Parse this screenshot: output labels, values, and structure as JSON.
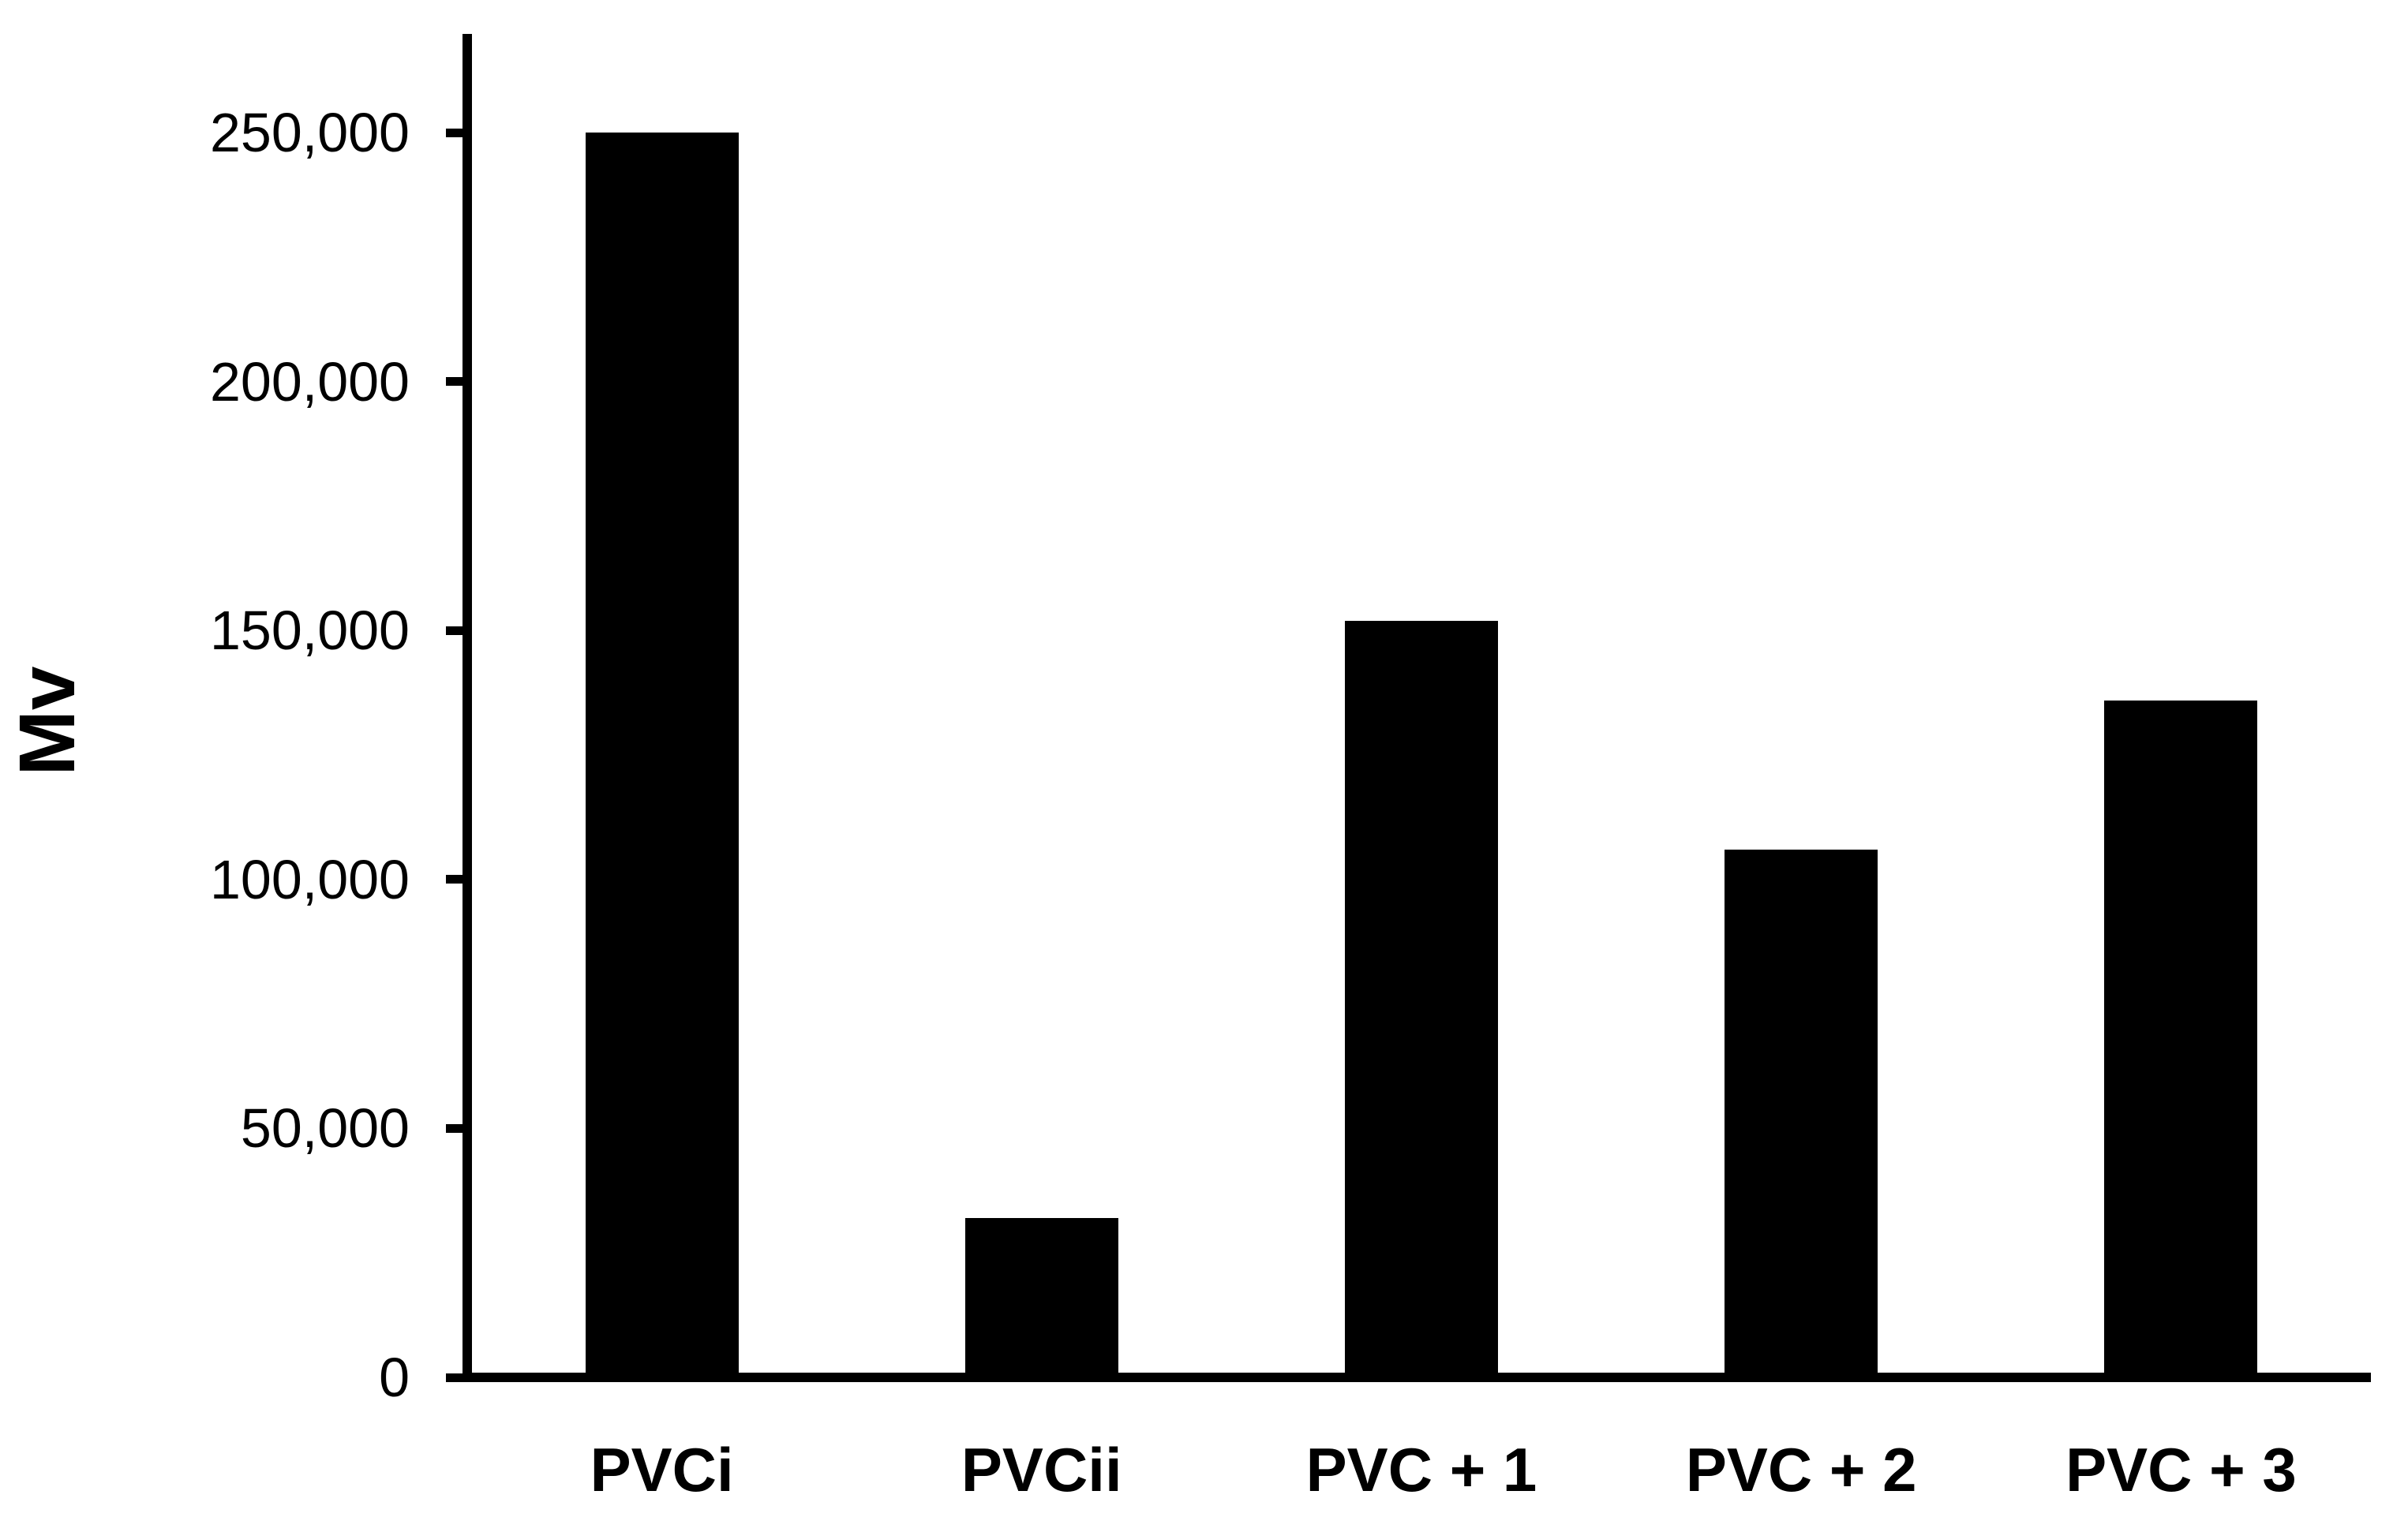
{
  "chart_data": {
    "type": "bar",
    "title": "",
    "xlabel": "",
    "ylabel": "Mv",
    "categories": [
      "PVCi",
      "PVCii",
      "PVC + 1",
      "PVC + 2",
      "PVC + 3"
    ],
    "values": [
      250000,
      32000,
      152000,
      106000,
      136000
    ],
    "ylim": [
      0,
      250000
    ],
    "ytick_step": 50000,
    "yticks": [
      {
        "value": 0,
        "label": "0"
      },
      {
        "value": 50000,
        "label": "50,000"
      },
      {
        "value": 100000,
        "label": "100,000"
      },
      {
        "value": 150000,
        "label": "150,000"
      },
      {
        "value": 200000,
        "label": "200,000"
      },
      {
        "value": 250000,
        "label": "250,000"
      }
    ],
    "grid": false,
    "legend": "none",
    "bar_color": "#000000",
    "axis_color": "#000000",
    "background_color": "#ffffff"
  }
}
